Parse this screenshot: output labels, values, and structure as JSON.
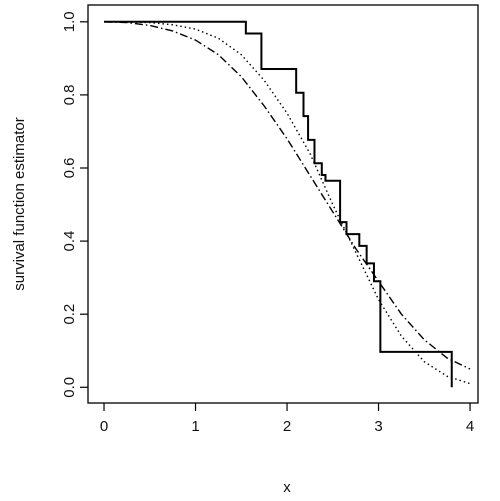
{
  "chart_data": {
    "type": "line",
    "xlabel": "x",
    "ylabel": "survival function estimator",
    "xlim": [
      -0.175,
      4.087
    ],
    "xticks": [
      0,
      1,
      2,
      3,
      4
    ],
    "ylim": [
      -0.043,
      1.046
    ],
    "yticks": [
      {
        "value": 0,
        "label": "0.0"
      },
      0.2,
      0.4,
      0.6,
      0.8,
      {
        "value": 1,
        "label": "1.0"
      }
    ],
    "series": [
      {
        "style": "step",
        "color": "#000000",
        "x": [
          0,
          1.55,
          1.72,
          2.1,
          2.18,
          2.23,
          2.3,
          2.38,
          2.42,
          2.58,
          2.65,
          2.79,
          2.87,
          2.95,
          3.02,
          3.8
        ],
        "values": [
          1.0,
          0.968,
          0.871,
          0.806,
          0.742,
          0.677,
          0.613,
          0.581,
          0.565,
          0.452,
          0.419,
          0.387,
          0.339,
          0.29,
          0.097,
          0.0
        ]
      },
      {
        "style": "dotted",
        "color": "#000000",
        "x": [
          0,
          0.25,
          0.5,
          0.75,
          1,
          1.25,
          1.5,
          1.75,
          2,
          2.25,
          2.5,
          2.75,
          3,
          3.25,
          3.5,
          3.75,
          4
        ],
        "values": [
          1.0,
          1.0,
          0.998,
          0.992,
          0.98,
          0.955,
          0.91,
          0.84,
          0.75,
          0.64,
          0.5,
          0.37,
          0.24,
          0.14,
          0.07,
          0.03,
          0.01
        ]
      },
      {
        "style": "dashdot",
        "color": "#000000",
        "x": [
          0,
          0.25,
          0.5,
          0.75,
          1,
          1.25,
          1.5,
          1.75,
          2,
          2.25,
          2.5,
          2.75,
          3,
          3.25,
          3.5,
          3.75,
          4
        ],
        "values": [
          1.0,
          0.998,
          0.99,
          0.975,
          0.95,
          0.91,
          0.85,
          0.77,
          0.68,
          0.58,
          0.48,
          0.38,
          0.29,
          0.2,
          0.13,
          0.08,
          0.05
        ]
      }
    ]
  }
}
